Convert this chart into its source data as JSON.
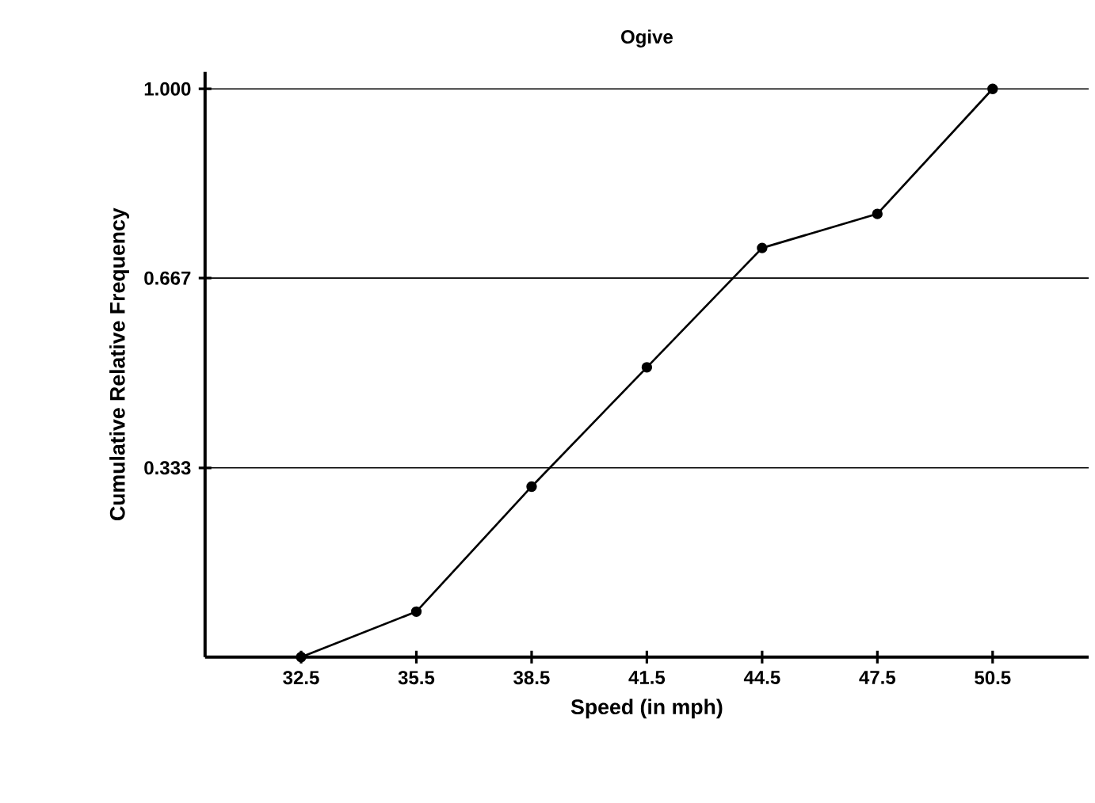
{
  "chart_data": {
    "type": "line",
    "title": "Ogive",
    "xlabel": "Speed (in mph)",
    "ylabel": "Cumulative Relative Frequency",
    "x": [
      32.5,
      35.5,
      38.5,
      41.5,
      44.5,
      47.5,
      50.5
    ],
    "values": [
      0,
      0.08,
      0.3,
      0.51,
      0.72,
      0.78,
      1
    ],
    "color": "#000000",
    "marker": "circle",
    "line_style": "solid",
    "grid": "y",
    "xlim": [
      30,
      53
    ],
    "xticks": [
      32.5,
      35.5,
      38.5,
      41.5,
      44.5,
      47.5,
      50.5
    ],
    "ylim": [
      0,
      1.03
    ],
    "yticks": [
      {
        "value": 0.333,
        "label": "0.333"
      },
      {
        "value": 0.667,
        "label": "0.667"
      },
      {
        "value": 1,
        "label": "1.000"
      }
    ]
  }
}
